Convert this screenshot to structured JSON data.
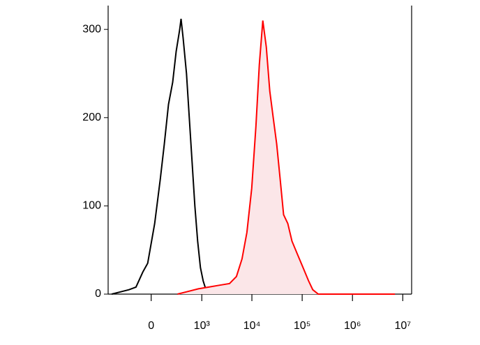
{
  "chart_data": {
    "type": "histogram-overlay",
    "xscale": "biexponential",
    "xlim": [
      -700,
      15000000
    ],
    "ylim": [
      0,
      327
    ],
    "xticks": [
      0,
      {
        "value": 1000,
        "label": "10³"
      },
      {
        "value": 10000,
        "label": "10⁴"
      },
      {
        "value": 100000,
        "label": "10⁵"
      },
      {
        "value": 1000000,
        "label": "10⁶"
      },
      {
        "value": 10000000,
        "label": "10⁷"
      }
    ],
    "yticks": [
      0,
      100,
      200,
      300
    ],
    "series": [
      {
        "color": "#000000",
        "fill": "none",
        "x": [
          -590,
          -350,
          -240,
          -150,
          -78,
          -32,
          32,
          85,
          127,
          175,
          229,
          281,
          340,
          365,
          406,
          482,
          552,
          631,
          722,
          824,
          937,
          1067,
          1214,
          1379
        ],
        "values": [
          0,
          3,
          5,
          8,
          25,
          35,
          80,
          130,
          170,
          215,
          240,
          275,
          300,
          312,
          290,
          250,
          200,
          150,
          100,
          60,
          30,
          15,
          5,
          0
        ]
      },
      {
        "color": "#ff0000",
        "fill": "#fbe6e8",
        "x": [
          302,
          517,
          851,
          1379,
          2229,
          3592,
          4935,
          6370,
          7952,
          9930,
          12020,
          14070,
          16500,
          19340,
          22690,
          26570,
          31160,
          36540,
          42790,
          51740,
          62690,
          80800,
          104100,
          134100,
          162400,
          209300,
          7000000
        ],
        "values": [
          0,
          3,
          6,
          8,
          10,
          12,
          20,
          40,
          70,
          120,
          190,
          260,
          310,
          280,
          230,
          200,
          170,
          130,
          90,
          80,
          60,
          45,
          30,
          15,
          5,
          0,
          0
        ]
      }
    ]
  }
}
